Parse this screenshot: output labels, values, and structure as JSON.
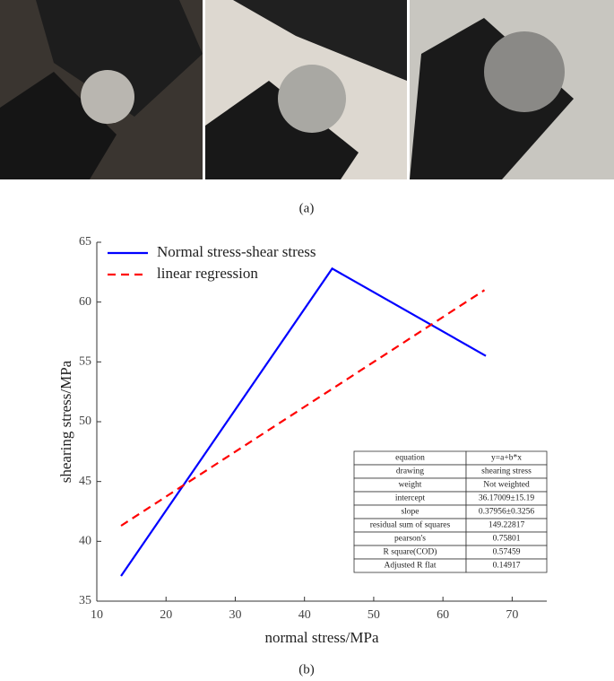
{
  "captions": {
    "top": "(a)",
    "bottom": "(b)"
  },
  "chart_data": {
    "type": "line",
    "x_label": "normal stress/MPa",
    "y_label": "shearing stress/MPa",
    "series": [
      {
        "name": "Normal stress-shear stress",
        "color": "#0000ff",
        "dashed": false,
        "x": [
          13.5,
          44,
          66.2
        ],
        "values": [
          37.1,
          62.8,
          55.5
        ]
      },
      {
        "name": "linear regression",
        "color": "#ff0000",
        "dashed": true,
        "x": [
          13.5,
          66
        ],
        "values": [
          41.3,
          61
        ]
      }
    ],
    "xlim": [
      10,
      75
    ],
    "ylim": [
      35,
      65
    ],
    "xticks": [
      10,
      20,
      30,
      40,
      50,
      60,
      70
    ],
    "yticks": [
      35,
      40,
      45,
      50,
      55,
      60,
      65
    ],
    "legend": "upper-left",
    "table": {
      "rows": [
        [
          "equation",
          "y=a+b*x"
        ],
        [
          "drawing",
          "shearing stress"
        ],
        [
          "weight",
          "Not weighted"
        ],
        [
          "intercept",
          "36.17009±15.19"
        ],
        [
          "slope",
          "0.37956±0.3256"
        ],
        [
          "residual sum of squares",
          "149.22817"
        ],
        [
          "pearson's",
          "0.75801"
        ],
        [
          "R square(COD)",
          "0.57459"
        ],
        [
          "Adjusted R flat",
          "0.14917"
        ]
      ]
    }
  }
}
